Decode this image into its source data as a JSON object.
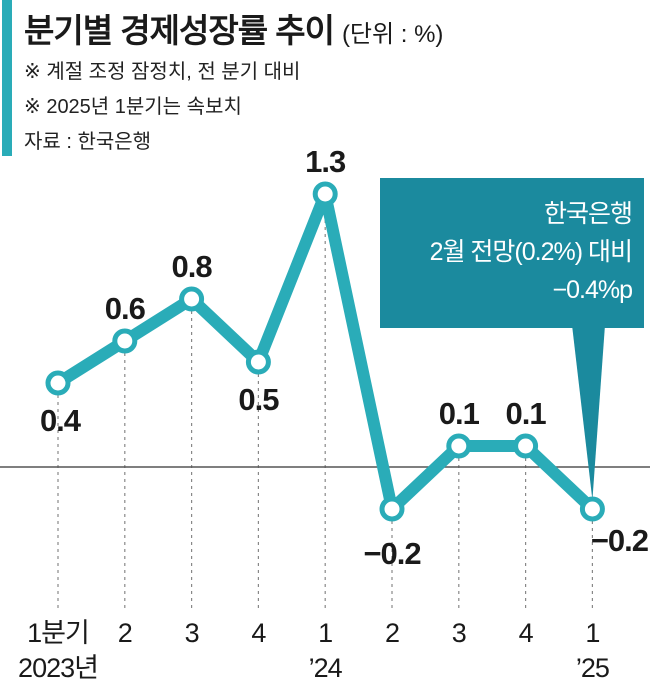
{
  "header": {
    "title": "분기별 경제성장률 추이",
    "unit": "(단위 : %)",
    "notes": [
      "※ 계절 조정 잠정치, 전 분기 대비",
      "※ 2025년 1분기는 속보치",
      "자료 : 한국은행"
    ]
  },
  "colors": {
    "accent": "#2aacb8",
    "callout_bg": "#1b8a9e",
    "text": "#1a1a1a",
    "zero_line": "#555555",
    "grid": "#888888"
  },
  "chart_data": {
    "type": "line",
    "categories": [
      "1분기",
      "2",
      "3",
      "4",
      "1",
      "2",
      "3",
      "4",
      "1"
    ],
    "year_labels": [
      "2023년",
      "",
      "",
      "",
      "’24",
      "",
      "",
      "",
      "’25"
    ],
    "values": [
      0.4,
      0.6,
      0.8,
      0.5,
      1.3,
      -0.2,
      0.1,
      0.1,
      -0.2
    ],
    "value_labels": [
      "0.4",
      "0.6",
      "0.8",
      "0.5",
      "1.3",
      "−0.2",
      "0.1",
      "0.1",
      "−0.2"
    ],
    "ylim": [
      -0.45,
      1.6
    ],
    "grid": "vertical dotted",
    "annotation": {
      "lines": [
        "한국은행",
        "2월 전망(0.2%) 대비",
        "−0.4%p"
      ],
      "target_index": 8
    }
  }
}
